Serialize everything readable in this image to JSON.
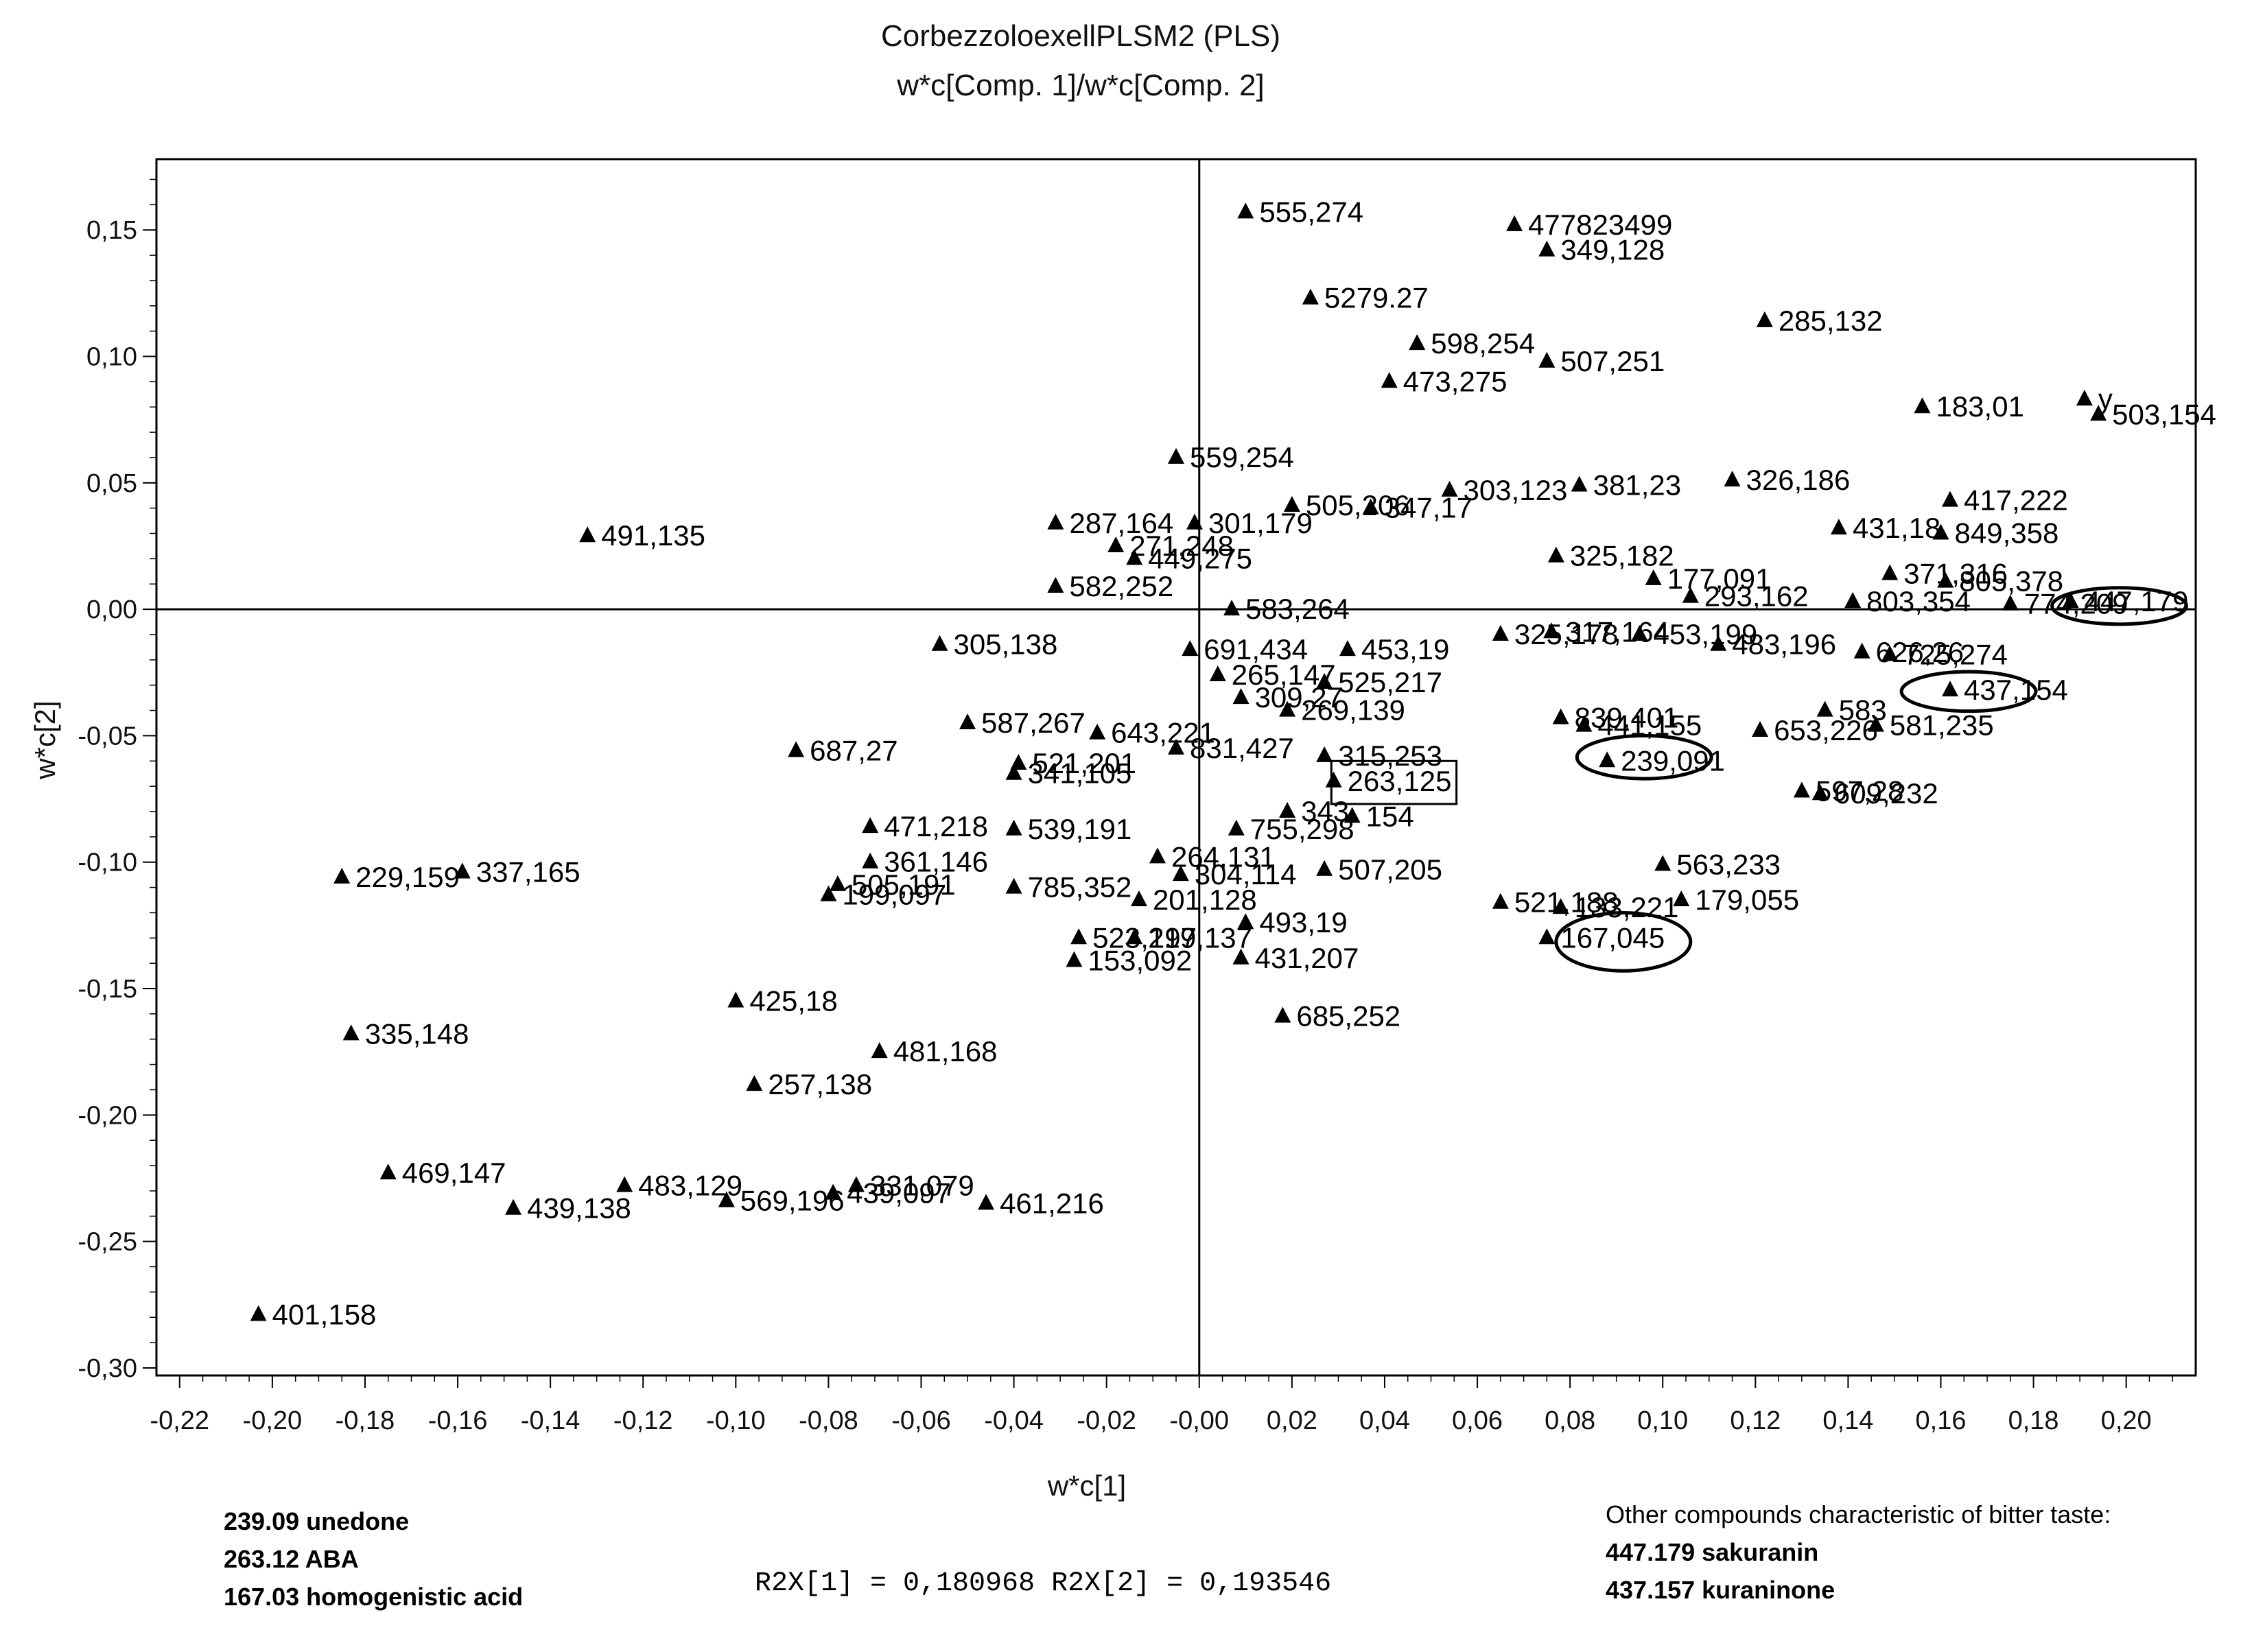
{
  "chart_data": {
    "type": "scatter",
    "title": "CorbezzoloexellPLSM2 (PLS)",
    "subtitle": "w*c[Comp. 1]/w*c[Comp. 2]",
    "xlabel": "w*c[1]",
    "ylabel": "w*c[2]",
    "xlim": [
      -0.225,
      0.215
    ],
    "ylim": [
      -0.303,
      0.178
    ],
    "x_ticks": [
      "-0,22",
      "-0,20",
      "-0,18",
      "-0,16",
      "-0,14",
      "-0,12",
      "-0,10",
      "-0,08",
      "-0,06",
      "-0,04",
      "-0,02",
      "-0,00",
      "0,02",
      "0,04",
      "0,06",
      "0,08",
      "0,10",
      "0,12",
      "0,14",
      "0,16",
      "0,18",
      "0,20"
    ],
    "x_tick_values": [
      -0.22,
      -0.2,
      -0.18,
      -0.16,
      -0.14,
      -0.12,
      -0.1,
      -0.08,
      -0.06,
      -0.04,
      -0.02,
      0,
      0.02,
      0.04,
      0.06,
      0.08,
      0.1,
      0.12,
      0.14,
      0.16,
      0.18,
      0.2
    ],
    "y_ticks": [
      "0,15",
      "0,10",
      "0,05",
      "0,00",
      "-0,05",
      "-0,10",
      "-0,15",
      "-0,20",
      "-0,25",
      "-0,30"
    ],
    "y_tick_values": [
      0.15,
      0.1,
      0.05,
      0,
      -0.05,
      -0.1,
      -0.15,
      -0.2,
      -0.25,
      -0.3
    ],
    "marker": "triangle",
    "points": [
      {
        "label": "555,274",
        "x": 0.01,
        "y": 0.157
      },
      {
        "label": "477823499",
        "x": 0.068,
        "y": 0.152
      },
      {
        "label": "349,128",
        "x": 0.075,
        "y": 0.142
      },
      {
        "label": "5279.27",
        "x": 0.024,
        "y": 0.123
      },
      {
        "label": "285,132",
        "x": 0.122,
        "y": 0.114
      },
      {
        "label": "598,254",
        "x": 0.047,
        "y": 0.105
      },
      {
        "label": "507,251",
        "x": 0.075,
        "y": 0.098
      },
      {
        "label": "473,275",
        "x": 0.041,
        "y": 0.09
      },
      {
        "label": "y",
        "x": 0.191,
        "y": 0.083
      },
      {
        "label": "183,01",
        "x": 0.156,
        "y": 0.08
      },
      {
        "label": "503,154",
        "x": 0.194,
        "y": 0.077
      },
      {
        "label": "559,254",
        "x": -0.005,
        "y": 0.06
      },
      {
        "label": "326,186",
        "x": 0.115,
        "y": 0.051
      },
      {
        "label": "381,23",
        "x": 0.082,
        "y": 0.049
      },
      {
        "label": "303,123",
        "x": 0.054,
        "y": 0.047
      },
      {
        "label": "417,222",
        "x": 0.162,
        "y": 0.043
      },
      {
        "label": "505,206",
        "x": 0.02,
        "y": 0.041
      },
      {
        "label": "347,17",
        "x": 0.037,
        "y": 0.04
      },
      {
        "label": "287,164",
        "x": -0.031,
        "y": 0.034
      },
      {
        "label": "301,179",
        "x": -0.001,
        "y": 0.034
      },
      {
        "label": "431,18",
        "x": 0.138,
        "y": 0.032
      },
      {
        "label": "849,358",
        "x": 0.16,
        "y": 0.03
      },
      {
        "label": "491,135",
        "x": -0.132,
        "y": 0.029
      },
      {
        "label": "271,248",
        "x": -0.018,
        "y": 0.025
      },
      {
        "label": "449,275",
        "x": -0.014,
        "y": 0.02
      },
      {
        "label": "325,182",
        "x": 0.077,
        "y": 0.021
      },
      {
        "label": "371,316",
        "x": 0.149,
        "y": 0.014
      },
      {
        "label": "177,091",
        "x": 0.098,
        "y": 0.012
      },
      {
        "label": "805,378",
        "x": 0.161,
        "y": 0.011
      },
      {
        "label": "582,252",
        "x": -0.031,
        "y": 0.009
      },
      {
        "label": "293,162",
        "x": 0.106,
        "y": 0.005
      },
      {
        "label": "803,354",
        "x": 0.141,
        "y": 0.003
      },
      {
        "label": "447,179",
        "x": 0.188,
        "y": 0.003
      },
      {
        "label": "774,209",
        "x": 0.175,
        "y": 0.002
      },
      {
        "label": "583,264",
        "x": 0.007,
        "y": 0.0
      },
      {
        "label": "325,178",
        "x": 0.065,
        "y": -0.01
      },
      {
        "label": "317,164",
        "x": 0.076,
        "y": -0.009
      },
      {
        "label": "453,199",
        "x": 0.095,
        "y": -0.01
      },
      {
        "label": "483,196",
        "x": 0.112,
        "y": -0.014
      },
      {
        "label": "305,138",
        "x": -0.056,
        "y": -0.014
      },
      {
        "label": "453,19",
        "x": 0.032,
        "y": -0.016
      },
      {
        "label": "691,434",
        "x": -0.002,
        "y": -0.016
      },
      {
        "label": "626,26",
        "x": 0.143,
        "y": -0.017
      },
      {
        "label": "725,274",
        "x": 0.149,
        "y": -0.018
      },
      {
        "label": "265,147",
        "x": 0.004,
        "y": -0.026
      },
      {
        "label": "525,217",
        "x": 0.027,
        "y": -0.029
      },
      {
        "label": "309,27",
        "x": 0.009,
        "y": -0.035
      },
      {
        "label": "269,139",
        "x": 0.019,
        "y": -0.04
      },
      {
        "label": "437,154",
        "x": 0.162,
        "y": -0.032
      },
      {
        "label": "583",
        "x": 0.135,
        "y": -0.04
      },
      {
        "label": "581,235",
        "x": 0.146,
        "y": -0.046
      },
      {
        "label": "839,401",
        "x": 0.078,
        "y": -0.043
      },
      {
        "label": "441,155",
        "x": 0.083,
        "y": -0.046
      },
      {
        "label": "653,226",
        "x": 0.121,
        "y": -0.048
      },
      {
        "label": "587,267",
        "x": -0.05,
        "y": -0.045
      },
      {
        "label": "643,221",
        "x": -0.022,
        "y": -0.049
      },
      {
        "label": "831,427",
        "x": -0.005,
        "y": -0.055
      },
      {
        "label": "315,253",
        "x": 0.027,
        "y": -0.058
      },
      {
        "label": "687,27",
        "x": -0.087,
        "y": -0.056
      },
      {
        "label": "239,091",
        "x": 0.088,
        "y": -0.06
      },
      {
        "label": "521,201",
        "x": -0.039,
        "y": -0.061
      },
      {
        "label": "341,105",
        "x": -0.04,
        "y": -0.065
      },
      {
        "label": "263,125",
        "x": 0.029,
        "y": -0.068
      },
      {
        "label": "609,232",
        "x": 0.134,
        "y": -0.073
      },
      {
        "label": "597,28",
        "x": 0.13,
        "y": -0.072
      },
      {
        "label": "343",
        "x": 0.019,
        "y": -0.08
      },
      {
        "label": "154",
        "x": 0.033,
        "y": -0.082
      },
      {
        "label": "471,218",
        "x": -0.071,
        "y": -0.086
      },
      {
        "label": "539,191",
        "x": -0.04,
        "y": -0.087
      },
      {
        "label": "755,298",
        "x": 0.008,
        "y": -0.087
      },
      {
        "label": "264,131",
        "x": -0.009,
        "y": -0.098
      },
      {
        "label": "361,146",
        "x": -0.071,
        "y": -0.1
      },
      {
        "label": "563,233",
        "x": 0.1,
        "y": -0.101
      },
      {
        "label": "229,159",
        "x": -0.185,
        "y": -0.106
      },
      {
        "label": "337,165",
        "x": -0.159,
        "y": -0.104
      },
      {
        "label": "507,205",
        "x": 0.027,
        "y": -0.103
      },
      {
        "label": "304,114",
        "x": -0.004,
        "y": -0.105
      },
      {
        "label": "505,191",
        "x": -0.078,
        "y": -0.109
      },
      {
        "label": "785,352",
        "x": -0.04,
        "y": -0.11
      },
      {
        "label": "199,097",
        "x": -0.08,
        "y": -0.113
      },
      {
        "label": "201,128",
        "x": -0.013,
        "y": -0.115
      },
      {
        "label": "179,055",
        "x": 0.104,
        "y": -0.115
      },
      {
        "label": "521,188",
        "x": 0.065,
        "y": -0.116
      },
      {
        "label": "133,221",
        "x": 0.078,
        "y": -0.118
      },
      {
        "label": "493,19",
        "x": 0.01,
        "y": -0.124
      },
      {
        "label": "167,045",
        "x": 0.075,
        "y": -0.13
      },
      {
        "label": "523,197",
        "x": -0.026,
        "y": -0.13
      },
      {
        "label": "219,137",
        "x": -0.014,
        "y": -0.13
      },
      {
        "label": "153,092",
        "x": -0.027,
        "y": -0.139
      },
      {
        "label": "431,207",
        "x": 0.009,
        "y": -0.138
      },
      {
        "label": "425,18",
        "x": -0.1,
        "y": -0.155
      },
      {
        "label": "685,252",
        "x": 0.018,
        "y": -0.161
      },
      {
        "label": "335,148",
        "x": -0.183,
        "y": -0.168
      },
      {
        "label": "481,168",
        "x": -0.069,
        "y": -0.175
      },
      {
        "label": "257,138",
        "x": -0.096,
        "y": -0.188
      },
      {
        "label": "469,147",
        "x": -0.175,
        "y": -0.223
      },
      {
        "label": "483,129",
        "x": -0.124,
        "y": -0.228
      },
      {
        "label": "331,079",
        "x": -0.074,
        "y": -0.228
      },
      {
        "label": "569,196",
        "x": -0.102,
        "y": -0.234
      },
      {
        "label": "439,097",
        "x": -0.079,
        "y": -0.231
      },
      {
        "label": "461,216",
        "x": -0.046,
        "y": -0.235
      },
      {
        "label": "439,138",
        "x": -0.148,
        "y": -0.237
      },
      {
        "label": "401,158",
        "x": -0.203,
        "y": -0.279
      }
    ],
    "highlighted": [
      {
        "label": "447,179",
        "x": 0.1985,
        "y": 0.0013,
        "shape": "ellipse",
        "rx": 0.0145,
        "ry": 0.0072
      },
      {
        "label": "437,154",
        "x": 0.166,
        "y": -0.0325,
        "shape": "ellipse",
        "rx": 0.0145,
        "ry": 0.0078
      },
      {
        "label": "239,091",
        "x": 0.096,
        "y": -0.0585,
        "shape": "ellipse",
        "rx": 0.0145,
        "ry": 0.0085
      },
      {
        "label": "263,125",
        "x": 0.042,
        "y": -0.0685,
        "shape": "box",
        "rx": 0.0135,
        "ry": 0.0085
      },
      {
        "label": "167,045",
        "x": 0.0915,
        "y": -0.1315,
        "shape": "ellipse",
        "rx": 0.0145,
        "ry": 0.0115
      }
    ],
    "r2x_text": "R2X[1] = 0,180968 R2X[2] = 0,193546"
  },
  "legend_left": [
    "239.09 unedone",
    "263.12 ABA",
    "167.03 homogenistic acid"
  ],
  "legend_right": {
    "heading": "Other compounds characteristic of bitter taste:",
    "items": [
      "447.179 sakuranin",
      "437.157 kuraninone"
    ]
  }
}
